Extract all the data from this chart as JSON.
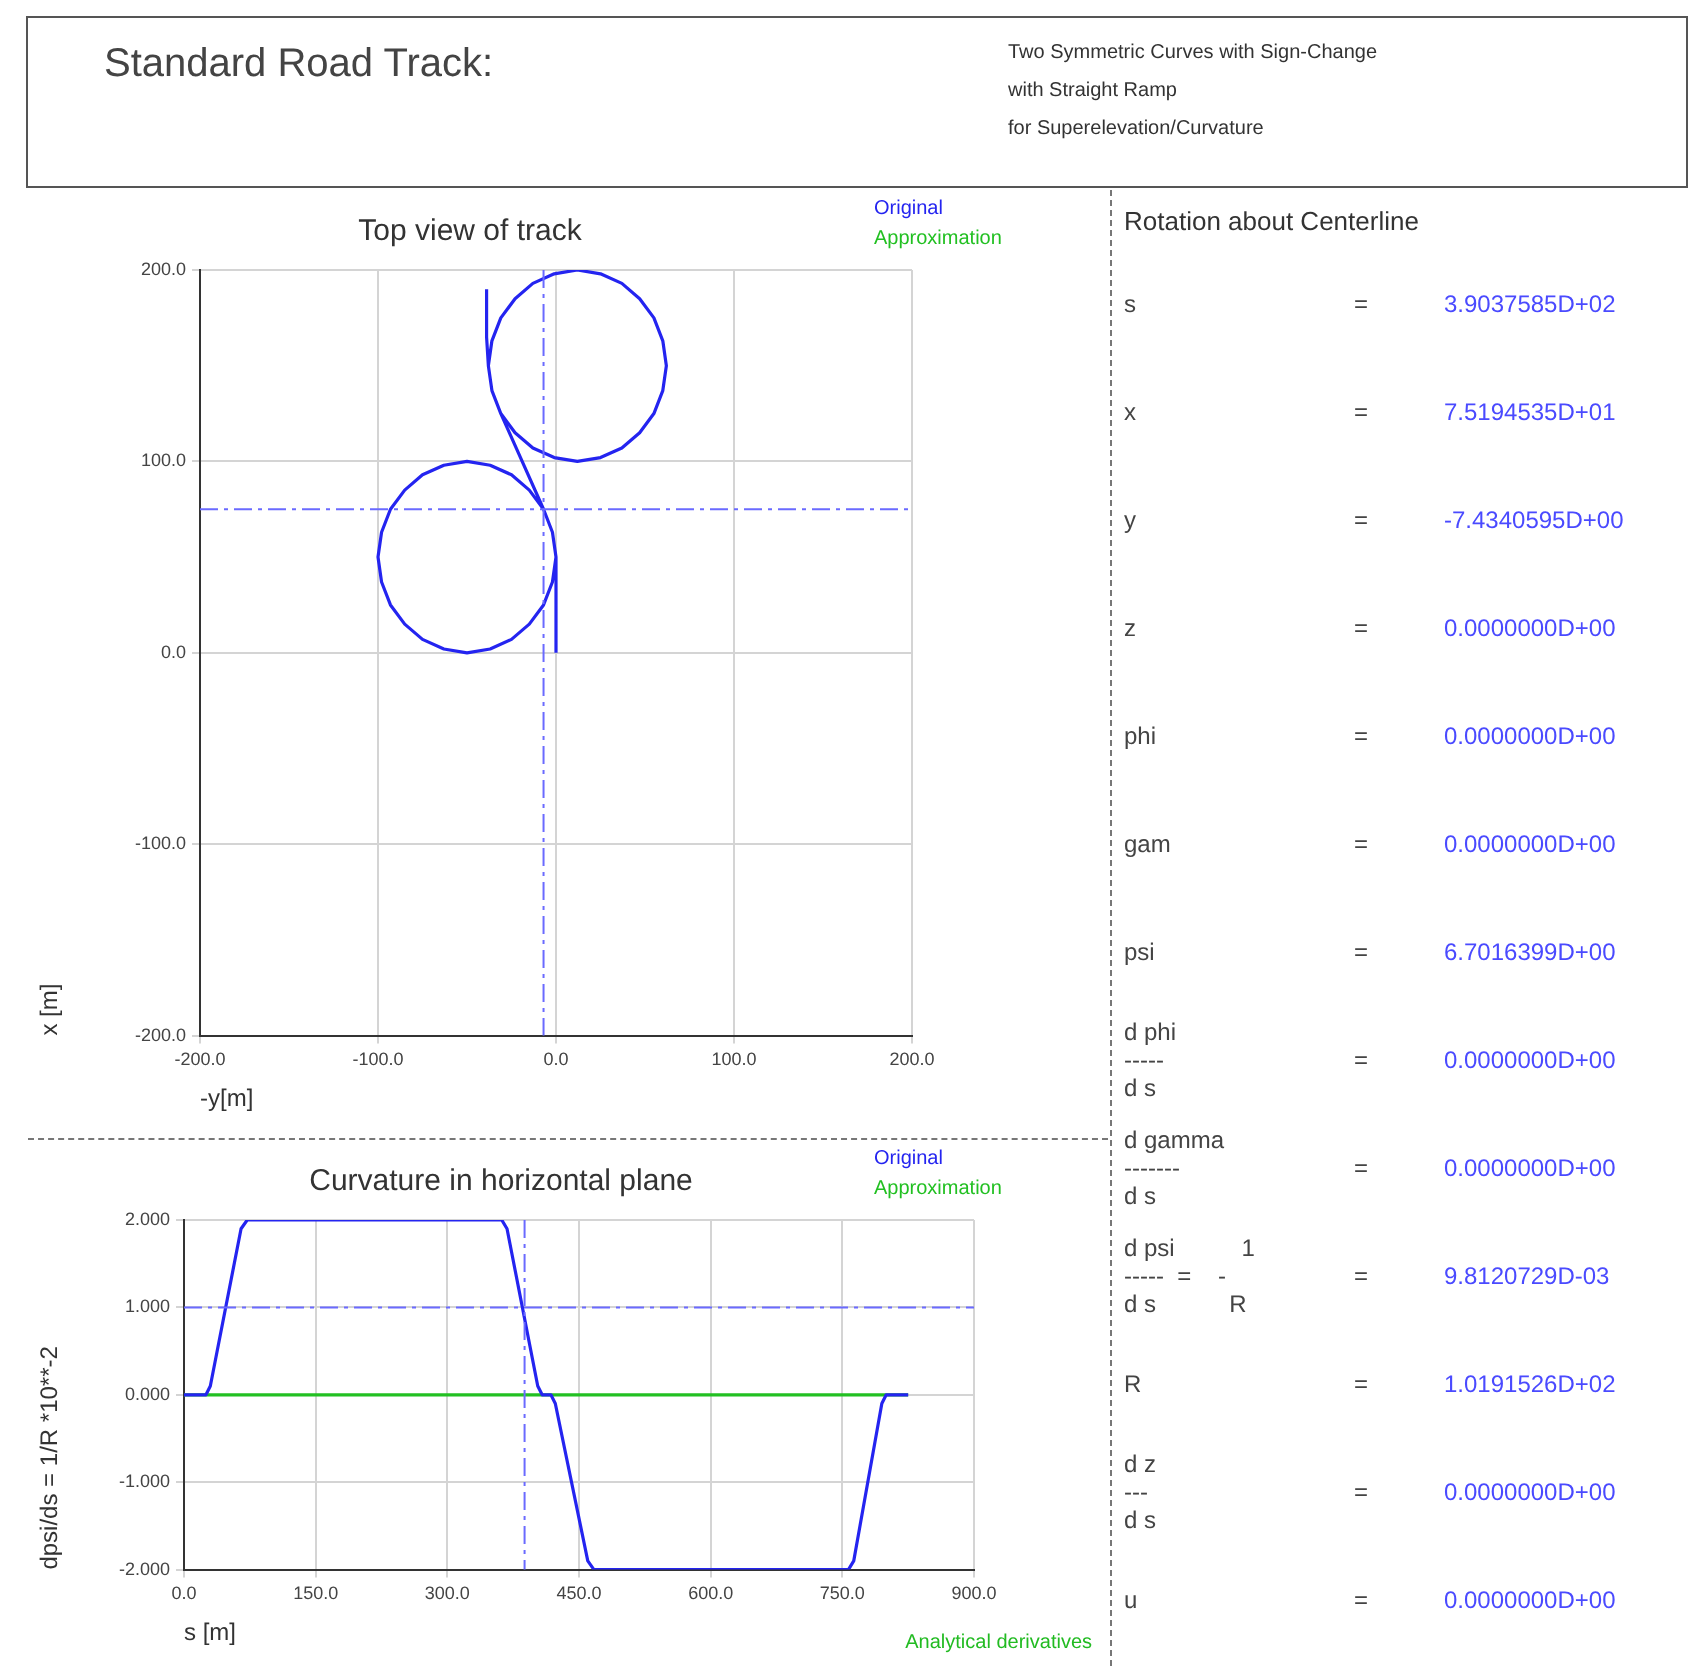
{
  "chart_data": [
    {
      "type": "other",
      "title": "Standard Road Track:",
      "subtitle": "Two Symmetric Curves with Sign-Change\nwith Straight Ramp\nfor Superelevation/Curvature"
    },
    {
      "type": "line",
      "title": "Top view of track",
      "xlabel": "-y[m]",
      "ylabel": "x [m]",
      "xlim": [
        -200,
        200
      ],
      "xticks": [
        {
          "value": -200,
          "label": "-200.0"
        },
        {
          "value": -100,
          "label": "-100.0"
        },
        {
          "value": 0,
          "label": "0.0"
        },
        {
          "value": 100,
          "label": "100.0"
        },
        {
          "value": 200,
          "label": "200.0"
        }
      ],
      "ylim": [
        -200,
        200
      ],
      "yticks": [
        {
          "value": -200,
          "label": "-200.0"
        },
        {
          "value": -100,
          "label": "-100.0"
        },
        {
          "value": 0,
          "label": "0.0"
        },
        {
          "value": 100,
          "label": "100.0"
        },
        {
          "value": 200,
          "label": "200.0"
        }
      ],
      "grid": true,
      "legend": "top right",
      "series": [
        {
          "name": "Original",
          "color": "#2424f0",
          "x": [
            0,
            0,
            -2,
            -7,
            -15,
            -25,
            -37,
            -50,
            -63,
            -75,
            -85,
            -93,
            -98,
            -100,
            -98,
            -93,
            -85,
            -75,
            -63,
            -50,
            -37,
            -25,
            -15,
            -7,
            -2,
            0,
            -2,
            -7,
            -31,
            -36,
            -38,
            -36,
            -31,
            -23,
            -13,
            -1,
            12,
            25,
            37,
            47,
            55,
            60,
            62,
            60,
            55,
            47,
            37,
            25,
            12,
            -1,
            -13,
            -23,
            -31,
            -36,
            -38,
            -39,
            -39
          ],
          "values": [
            0,
            50,
            63,
            75,
            85,
            93,
            98,
            100,
            98,
            93,
            85,
            75,
            63,
            50,
            37,
            25,
            15,
            7,
            2,
            0,
            2,
            7,
            15,
            25,
            37,
            50,
            63,
            75,
            125,
            137,
            150,
            163,
            175,
            185,
            193,
            198,
            200,
            198,
            193,
            185,
            175,
            163,
            150,
            137,
            125,
            115,
            107,
            102,
            100,
            102,
            107,
            115,
            125,
            137,
            150,
            165,
            190
          ]
        },
        {
          "name": "Approximation",
          "color": "#22c022"
        }
      ],
      "ref_lines": [
        {
          "axis": "x",
          "value": -7,
          "color": "#6a6aff",
          "line_style": "dashed"
        },
        {
          "axis": "y",
          "value": 75,
          "color": "#6a6aff",
          "line_style": "dashed"
        }
      ]
    },
    {
      "type": "line",
      "title": "Curvature in horizontal plane",
      "xlabel": "s [m]",
      "ylabel": "dpsi/ds = 1/R *10**-2",
      "xlim": [
        0,
        900
      ],
      "xticks": [
        {
          "value": 0,
          "label": "0.0"
        },
        {
          "value": 150,
          "label": "150.0"
        },
        {
          "value": 300,
          "label": "300.0"
        },
        {
          "value": 450,
          "label": "450.0"
        },
        {
          "value": 600,
          "label": "600.0"
        },
        {
          "value": 750,
          "label": "750.0"
        },
        {
          "value": 900,
          "label": "900.0"
        }
      ],
      "ylim": [
        -2,
        2
      ],
      "yticks": [
        {
          "value": -2,
          "label": "-2.000"
        },
        {
          "value": -1,
          "label": "-1.000"
        },
        {
          "value": 0,
          "label": "0.000"
        },
        {
          "value": 1,
          "label": "1.000"
        },
        {
          "value": 2,
          "label": "2.000"
        }
      ],
      "grid": true,
      "legend": "top right",
      "series": [
        {
          "name": "Original",
          "color": "#2424f0",
          "x": [
            0,
            25,
            30,
            65,
            72,
            362,
            368,
            403,
            408,
            418,
            423,
            460,
            467,
            757,
            763,
            795,
            800,
            825
          ],
          "values": [
            0,
            0,
            0.1,
            1.9,
            2,
            2,
            1.9,
            0.1,
            0,
            0,
            -0.1,
            -1.9,
            -2,
            -2,
            -1.9,
            -0.1,
            0,
            0
          ]
        },
        {
          "name": "Approximation",
          "color": "#22c022",
          "x": [
            0,
            825
          ],
          "values": [
            0,
            0
          ]
        }
      ],
      "ref_lines": [
        {
          "axis": "x",
          "value": 388,
          "color": "#6a6aff",
          "line_style": "dashed"
        },
        {
          "axis": "y",
          "value": 1,
          "color": "#6a6aff",
          "line_style": "dashed"
        }
      ],
      "annotations": [
        "Analytical derivatives"
      ]
    },
    {
      "type": "other",
      "title": "Rotation about Centerline",
      "annotations": [
        "s\t=\t3.9037585D+02",
        "x\t=\t7.5194535D+01",
        "y\t=\t-7.4340595D+00",
        "z\t=\t0.0000000D+00",
        "phi\t=\t0.0000000D+00",
        "gam\t=\t0.0000000D+00",
        "psi\t=\t6.7016399D+00",
        "d phi\n-----\nd s\t=\t0.0000000D+00",
        "d gamma\n-------\nd s\t=\t0.0000000D+00",
        "d psi          1\n-----  =    -\nd s           R\t=\t9.8120729D-03",
        "R\t=\t1.0191526D+02",
        "d z\n---\nd s\t=\t0.0000000D+00",
        "u\t=\t0.0000000D+00"
      ]
    }
  ]
}
